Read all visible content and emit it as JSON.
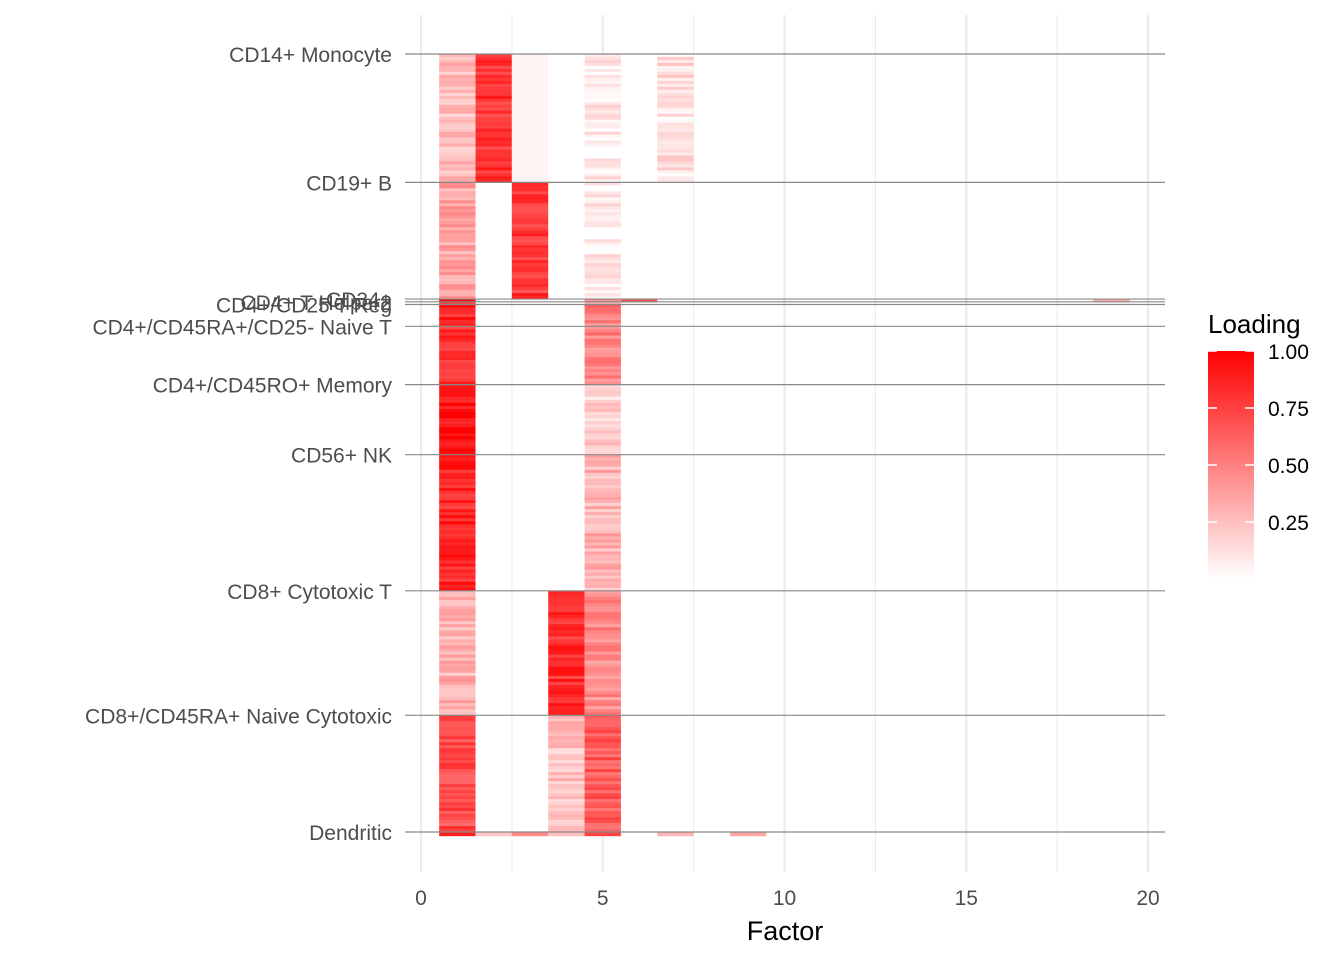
{
  "chart_data": {
    "type": "heatmap",
    "title": "",
    "xlabel": "Factor",
    "ylabel": "",
    "xlim": [
      0,
      20
    ],
    "x_ticks": [
      0,
      5,
      10,
      15,
      20
    ],
    "factors": [
      1,
      2,
      3,
      4,
      5,
      6,
      7,
      8,
      9,
      10,
      11,
      12,
      13,
      14,
      15,
      16,
      17,
      18,
      19
    ],
    "grid": true,
    "legend": {
      "title": "Loading",
      "position": "right",
      "ticks": [
        1.0,
        0.75,
        0.5,
        0.25
      ],
      "tick_labels": [
        "1.00",
        "0.75",
        "0.50",
        "0.25"
      ],
      "color_low": "#ffffff",
      "color_high": "#ff0000"
    },
    "cell_types": [
      {
        "label": "CD14+ Monocyte",
        "row_start": 0.0,
        "row_end": 0.165,
        "mean_loadings": [
          0.25,
          0.8,
          0.05,
          0.0,
          0.08,
          0.0,
          0.12,
          0.0,
          0.0,
          0.0,
          0.0,
          0.0,
          0.0,
          0.0,
          0.0,
          0.0,
          0.0,
          0.0,
          0.0
        ]
      },
      {
        "label": "CD19+ B",
        "row_start": 0.165,
        "row_end": 0.315,
        "mean_loadings": [
          0.35,
          0.0,
          0.78,
          0.0,
          0.06,
          0.0,
          0.0,
          0.0,
          0.0,
          0.0,
          0.0,
          0.0,
          0.0,
          0.0,
          0.0,
          0.0,
          0.0,
          0.0,
          0.0
        ]
      },
      {
        "label": "CD34+",
        "row_start": 0.315,
        "row_end": 0.3185,
        "mean_loadings": [
          0.9,
          0.0,
          0.0,
          0.0,
          0.45,
          0.8,
          0.0,
          0.0,
          0.0,
          0.0,
          0.0,
          0.0,
          0.0,
          0.0,
          0.0,
          0.0,
          0.0,
          0.0,
          0.3
        ]
      },
      {
        "label": "CD4+ T Helper2",
        "row_start": 0.3185,
        "row_end": 0.322,
        "mean_loadings": [
          0.85,
          0.0,
          0.0,
          0.0,
          0.4,
          0.0,
          0.0,
          0.0,
          0.0,
          0.0,
          0.0,
          0.0,
          0.0,
          0.0,
          0.0,
          0.0,
          0.0,
          0.0,
          0.0
        ]
      },
      {
        "label": "CD4+/CD25 T Reg",
        "row_start": 0.322,
        "row_end": 0.35,
        "mean_loadings": [
          0.85,
          0.0,
          0.0,
          0.0,
          0.5,
          0.0,
          0.0,
          0.0,
          0.0,
          0.0,
          0.0,
          0.0,
          0.0,
          0.0,
          0.0,
          0.0,
          0.0,
          0.0,
          0.0
        ]
      },
      {
        "label": "CD4+/CD45RA+/CD25- Naive T",
        "row_start": 0.35,
        "row_end": 0.425,
        "mean_loadings": [
          0.82,
          0.0,
          0.0,
          0.0,
          0.5,
          0.0,
          0.0,
          0.0,
          0.0,
          0.0,
          0.0,
          0.0,
          0.0,
          0.0,
          0.0,
          0.0,
          0.0,
          0.0,
          0.0
        ]
      },
      {
        "label": "CD4+/CD45RO+ Memory",
        "row_start": 0.425,
        "row_end": 0.515,
        "mean_loadings": [
          0.95,
          0.0,
          0.0,
          0.0,
          0.18,
          0.0,
          0.0,
          0.0,
          0.0,
          0.0,
          0.0,
          0.0,
          0.0,
          0.0,
          0.0,
          0.0,
          0.0,
          0.0,
          0.0
        ]
      },
      {
        "label": "CD56+ NK",
        "row_start": 0.515,
        "row_end": 0.69,
        "mean_loadings": [
          0.85,
          0.0,
          0.0,
          0.0,
          0.3,
          0.0,
          0.0,
          0.0,
          0.0,
          0.0,
          0.0,
          0.0,
          0.0,
          0.0,
          0.0,
          0.0,
          0.0,
          0.0,
          0.0
        ]
      },
      {
        "label": "CD8+ Cytotoxic T",
        "row_start": 0.69,
        "row_end": 0.85,
        "mean_loadings": [
          0.3,
          0.0,
          0.0,
          0.82,
          0.45,
          0.0,
          0.0,
          0.0,
          0.0,
          0.0,
          0.0,
          0.0,
          0.0,
          0.0,
          0.0,
          0.0,
          0.0,
          0.0,
          0.0
        ]
      },
      {
        "label": "CD8+/CD45RA+ Naive Cytotoxic",
        "row_start": 0.85,
        "row_end": 1.0,
        "mean_loadings": [
          0.7,
          0.0,
          0.0,
          0.25,
          0.65,
          0.0,
          0.0,
          0.0,
          0.0,
          0.0,
          0.0,
          0.0,
          0.0,
          0.0,
          0.0,
          0.0,
          0.0,
          0.0,
          0.0
        ]
      },
      {
        "label": "Dendritic",
        "row_start": 1.0,
        "row_end": 1.005,
        "mean_loadings": [
          0.8,
          0.3,
          0.45,
          0.2,
          0.7,
          0.0,
          0.25,
          0.0,
          0.3,
          0.0,
          0.0,
          0.0,
          0.0,
          0.0,
          0.0,
          0.0,
          0.0,
          0.0,
          0.0
        ]
      }
    ]
  }
}
